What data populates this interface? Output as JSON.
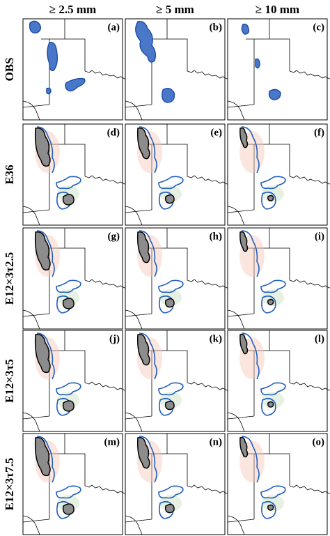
{
  "column_headers": [
    "≥ 2.5 mm",
    "≥ 5 mm",
    "≥ 10 mm"
  ],
  "row_labels": [
    "OBS",
    "E36",
    "E12×3τ2.5",
    "E12×3τ5",
    "E12×3τ7.5"
  ],
  "panel_labels": [
    "(a)",
    "(b)",
    "(c)",
    "(d)",
    "(e)",
    "(f)",
    "(g)",
    "(h)",
    "(i)",
    "(j)",
    "(k)",
    "(l)",
    "(m)",
    "(n)",
    "(o)"
  ]
}
